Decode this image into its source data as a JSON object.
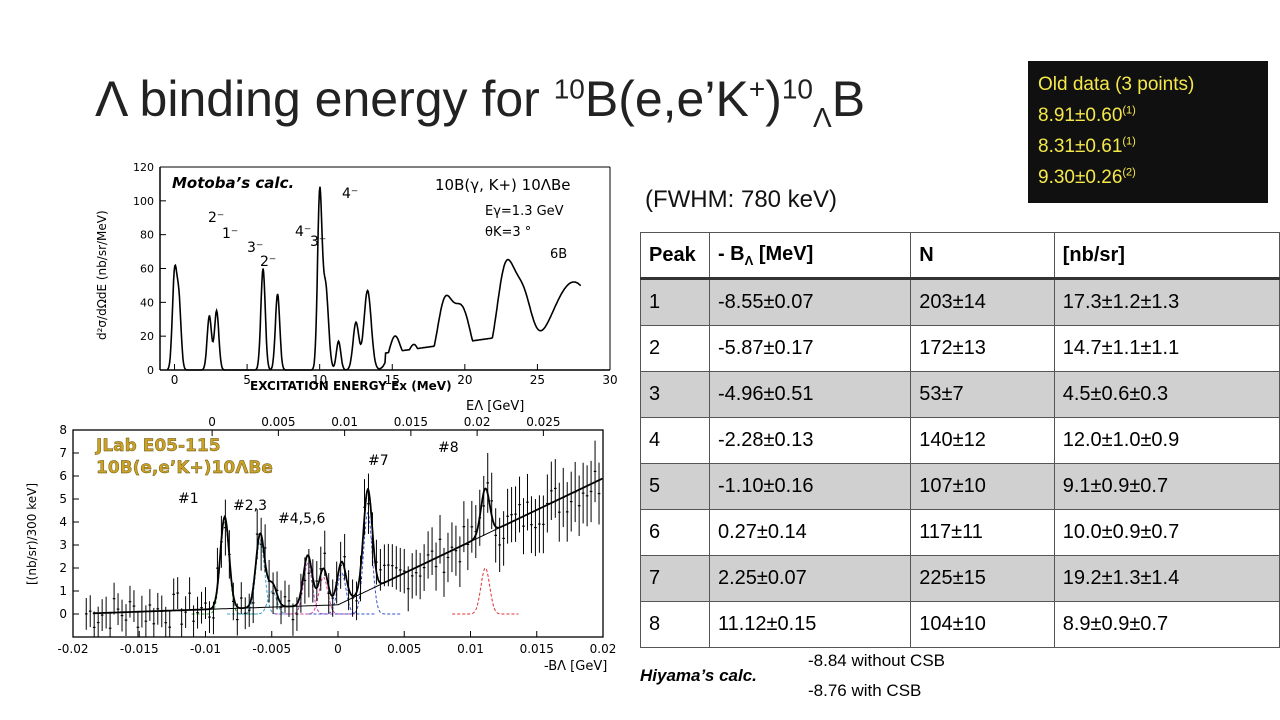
{
  "title": {
    "prefix": "Λ binding energy for ",
    "sup1": "10",
    "mid": "B(e,e’K",
    "plus": "+",
    ")": ")",
    "sup2": "10",
    "sub": "Λ",
    "end": "B"
  },
  "old_data": {
    "heading": "Old data (3 points)",
    "items": [
      {
        "value": "8.91±0.60",
        "ref": "(1)"
      },
      {
        "value": "8.31±0.61",
        "ref": "(1)"
      },
      {
        "value": "9.30±0.26",
        "ref": "(2)"
      }
    ]
  },
  "fwhm": "(FWHM: 780 keV)",
  "table": {
    "headers": [
      "Peak",
      "- BΛ [MeV]",
      "N",
      "[nb/sr]"
    ],
    "rows": [
      [
        "1",
        "-8.55±0.07",
        "203±14",
        "17.3±1.2±1.3"
      ],
      [
        "2",
        "-5.87±0.17",
        "172±13",
        "14.7±1.1±1.1"
      ],
      [
        "3",
        "-4.96±0.51",
        "53±7",
        "4.5±0.6±0.3"
      ],
      [
        "4",
        "-2.28±0.13",
        "140±12",
        "12.0±1.0±0.9"
      ],
      [
        "5",
        "-1.10±0.16",
        "107±10",
        "9.1±0.9±0.7"
      ],
      [
        "6",
        "0.27±0.14",
        "117±11",
        "10.0±0.9±0.7"
      ],
      [
        "7",
        "2.25±0.07",
        "225±15",
        "19.2±1.3±1.4"
      ],
      [
        "8",
        "11.12±0.15",
        "104±10",
        "8.9±0.9±0.7"
      ]
    ]
  },
  "hiyama": {
    "label": "Hiyama’s calc.",
    "without": "-8.84 without CSB",
    "with": "-8.76 with CSB"
  },
  "chart_data": [
    {
      "type": "line",
      "annotation": "Motoba’s calc.",
      "reaction": "10B(γ, K+) 10ΛBe",
      "params": [
        "Eγ=1.3 GeV",
        "θK=3 °",
        "6B"
      ],
      "xlabel": "EXCITATION ENERGY  Ex   (MeV)",
      "ylabel": "d²σ/dΩdE (nb/sr/MeV)",
      "xlim": [
        -1,
        30
      ],
      "ylim": [
        0,
        120
      ],
      "xticks": [
        0,
        5,
        10,
        15,
        20,
        25,
        30
      ],
      "yticks": [
        0,
        20,
        40,
        60,
        80,
        100,
        120
      ],
      "state_labels": [
        "2⁻",
        "1⁻",
        "3⁻",
        "2⁻",
        "4⁻",
        "3⁻",
        "4⁻"
      ]
    },
    {
      "type": "scatter",
      "label_line1": "JLab E05-115",
      "label_line2": "10B(e,e’K+)10ΛBe",
      "xlabel": "-BΛ [GeV]",
      "top_xlabel": "EΛ [GeV]",
      "ylabel": "[(nb/sr)/300 keV]",
      "xlim": [
        -0.02,
        0.02
      ],
      "ylim": [
        -1,
        8
      ],
      "xticks": [
        "-0.02",
        "-0.015",
        "-0.01",
        "-0.005",
        "0",
        "0.005",
        "0.01",
        "0.015",
        "0.02"
      ],
      "top_xticks": [
        "0",
        "0.005",
        "0.01",
        "0.015",
        "0.02",
        "0.025"
      ],
      "yticks": [
        "0",
        "1",
        "2",
        "3",
        "4",
        "5",
        "6",
        "7",
        "8"
      ],
      "peak_labels": [
        "#1",
        "#2,3",
        "#4,5,6",
        "#7",
        "#8"
      ]
    }
  ]
}
